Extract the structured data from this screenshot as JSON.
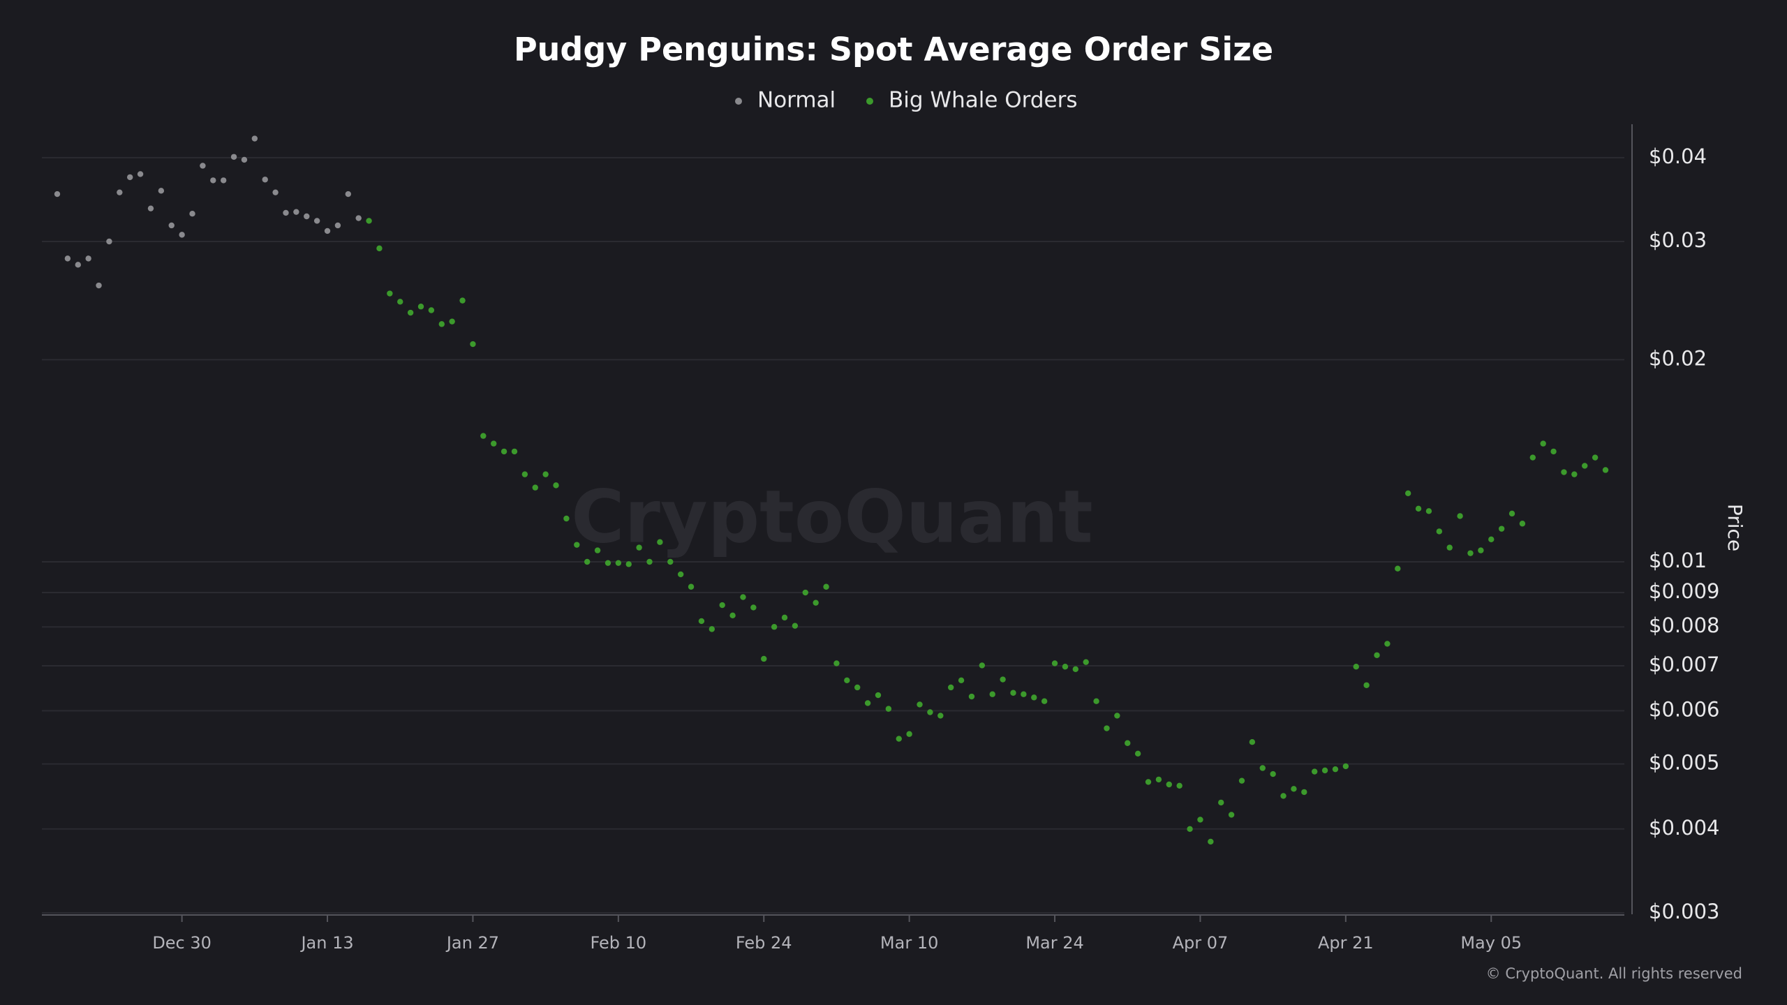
{
  "chart_data": {
    "type": "scatter",
    "title": "Pudgy Penguins: Spot Average Order Size",
    "y_label": "Price",
    "watermark": "CryptoQuant",
    "copyright": "© CryptoQuant. All rights reserved",
    "log_scale": true,
    "grid": true,
    "legend_position": "top",
    "x": [
      "Dec 18",
      "Dec 19",
      "Dec 20",
      "Dec 21",
      "Dec 22",
      "Dec 23",
      "Dec 24",
      "Dec 25",
      "Dec 26",
      "Dec 27",
      "Dec 28",
      "Dec 29",
      "Dec 30",
      "Dec 31",
      "Jan 01",
      "Jan 02",
      "Jan 03",
      "Jan 04",
      "Jan 05",
      "Jan 06",
      "Jan 07",
      "Jan 08",
      "Jan 09",
      "Jan 10",
      "Jan 11",
      "Jan 12",
      "Jan 13",
      "Jan 14",
      "Jan 15",
      "Jan 16",
      "Jan 17",
      "Jan 18",
      "Jan 19",
      "Jan 20",
      "Jan 21",
      "Jan 22",
      "Jan 23",
      "Jan 24",
      "Jan 25",
      "Jan 26",
      "Jan 27",
      "Jan 28",
      "Jan 29",
      "Jan 30",
      "Jan 31",
      "Feb 01",
      "Feb 02",
      "Feb 03",
      "Feb 04",
      "Feb 05",
      "Feb 06",
      "Feb 07",
      "Feb 08",
      "Feb 09",
      "Feb 10",
      "Feb 11",
      "Feb 12",
      "Feb 13",
      "Feb 14",
      "Feb 15",
      "Feb 16",
      "Feb 17",
      "Feb 18",
      "Feb 19",
      "Feb 20",
      "Feb 21",
      "Feb 22",
      "Feb 23",
      "Feb 24",
      "Feb 25",
      "Feb 26",
      "Feb 27",
      "Feb 28",
      "Mar 01",
      "Mar 02",
      "Mar 03",
      "Mar 04",
      "Mar 05",
      "Mar 06",
      "Mar 07",
      "Mar 08",
      "Mar 09",
      "Mar 10",
      "Mar 11",
      "Mar 12",
      "Mar 13",
      "Mar 14",
      "Mar 15",
      "Mar 16",
      "Mar 17",
      "Mar 18",
      "Mar 19",
      "Mar 20",
      "Mar 21",
      "Mar 22",
      "Mar 23",
      "Mar 24",
      "Mar 25",
      "Mar 26",
      "Mar 27",
      "Mar 28",
      "Mar 29",
      "Mar 30",
      "Mar 31",
      "Apr 01",
      "Apr 02",
      "Apr 03",
      "Apr 04",
      "Apr 05",
      "Apr 06",
      "Apr 07",
      "Apr 08",
      "Apr 09",
      "Apr 10",
      "Apr 11",
      "Apr 12",
      "Apr 13",
      "Apr 14",
      "Apr 15",
      "Apr 16",
      "Apr 17",
      "Apr 18",
      "Apr 19",
      "Apr 20",
      "Apr 21",
      "Apr 22",
      "Apr 23",
      "Apr 24",
      "Apr 25",
      "Apr 26",
      "Apr 27",
      "Apr 28",
      "Apr 29",
      "Apr 30",
      "May 01",
      "May 02",
      "May 03",
      "May 04",
      "May 05",
      "May 06",
      "May 07",
      "May 08",
      "May 09",
      "May 10",
      "May 11",
      "May 12",
      "May 13",
      "May 14",
      "May 15",
      "May 16"
    ],
    "xticks": [
      "Dec 30",
      "Jan 13",
      "Jan 27",
      "Feb 10",
      "Feb 24",
      "Mar 10",
      "Mar 24",
      "Apr 07",
      "Apr 21",
      "May 05"
    ],
    "ylim": [
      0.003,
      0.044
    ],
    "yticks": [
      {
        "value": 0.003,
        "label": "$0.003"
      },
      {
        "value": 0.004,
        "label": "$0.004"
      },
      {
        "value": 0.005,
        "label": "$0.005"
      },
      {
        "value": 0.006,
        "label": "$0.006"
      },
      {
        "value": 0.007,
        "label": "$0.007"
      },
      {
        "value": 0.008,
        "label": "$0.008"
      },
      {
        "value": 0.009,
        "label": "$0.009"
      },
      {
        "value": 0.01,
        "label": "$0.01"
      },
      {
        "value": 0.02,
        "label": "$0.02"
      },
      {
        "value": 0.03,
        "label": "$0.03"
      },
      {
        "value": 0.04,
        "label": "$0.04"
      }
    ],
    "series": [
      {
        "name": "Normal",
        "color": "#8a8a8e",
        "values": [
          0.0353,
          0.0283,
          0.0277,
          0.0283,
          0.0258,
          0.03,
          0.0355,
          0.0374,
          0.0378,
          0.0336,
          0.0357,
          0.0317,
          0.0307,
          0.033,
          0.0389,
          0.037,
          0.037,
          0.0401,
          0.0397,
          0.0427,
          0.0371,
          0.0355,
          0.0331,
          0.0332,
          0.0327,
          0.0322,
          0.0311,
          0.0317,
          0.0353,
          0.0325,
          null,
          null,
          null,
          null,
          null,
          null,
          null,
          null,
          null,
          null,
          null,
          null,
          null,
          null,
          null,
          null,
          null,
          null,
          null,
          null,
          null,
          null,
          null,
          null,
          null,
          null,
          null,
          null,
          null,
          null,
          null,
          null,
          null,
          null,
          null,
          null,
          null,
          null,
          null,
          null,
          null,
          null,
          null,
          null,
          null,
          null,
          null,
          null,
          null,
          null,
          null,
          null,
          null,
          null,
          null,
          null,
          null,
          null,
          null,
          null,
          null,
          null,
          null,
          null,
          null,
          null,
          null,
          null,
          null,
          null,
          null,
          null,
          null,
          null,
          null,
          null,
          null,
          null,
          null,
          null,
          null,
          null,
          null,
          null,
          null,
          null,
          null,
          null,
          null,
          null,
          null,
          null,
          null,
          null,
          null,
          null,
          null,
          null,
          null,
          null,
          null,
          null,
          null,
          null,
          null,
          null,
          null,
          null,
          null,
          null,
          null,
          null,
          null,
          null,
          null,
          null,
          null,
          null,
          null,
          null
        ]
      },
      {
        "name": "Big Whale Orders",
        "color": "#3c9a2c",
        "values": [
          null,
          null,
          null,
          null,
          null,
          null,
          null,
          null,
          null,
          null,
          null,
          null,
          null,
          null,
          null,
          null,
          null,
          null,
          null,
          null,
          null,
          null,
          null,
          null,
          null,
          null,
          null,
          null,
          null,
          null,
          0.0322,
          0.0293,
          0.0251,
          0.0244,
          0.0235,
          0.024,
          0.0237,
          0.0226,
          0.0228,
          0.0245,
          0.0211,
          0.0154,
          0.015,
          0.0146,
          0.0146,
          0.0135,
          0.0129,
          0.0135,
          0.013,
          0.0116,
          0.0106,
          0.01,
          0.0104,
          0.00996,
          0.00996,
          0.00992,
          0.0105,
          0.01,
          0.0107,
          0.01,
          0.00958,
          0.00918,
          0.00816,
          0.00794,
          0.00862,
          0.00832,
          0.00886,
          0.00855,
          0.00717,
          0.008,
          0.00826,
          0.00803,
          0.009,
          0.00869,
          0.00918,
          0.00706,
          0.00666,
          0.0065,
          0.00616,
          0.00633,
          0.00604,
          0.00545,
          0.00554,
          0.00613,
          0.00597,
          0.0059,
          0.0065,
          0.00666,
          0.0063,
          0.00701,
          0.00635,
          0.00668,
          0.00638,
          0.00635,
          0.00628,
          0.0062,
          0.00706,
          0.00698,
          0.00692,
          0.00709,
          0.0062,
          0.00565,
          0.0059,
          0.00537,
          0.00518,
          0.0047,
          0.00474,
          0.00466,
          0.00464,
          0.004,
          0.00413,
          0.00383,
          0.00438,
          0.0042,
          0.00472,
          0.00539,
          0.00493,
          0.00483,
          0.00448,
          0.00459,
          0.00454,
          0.00487,
          0.00489,
          0.00491,
          0.00496,
          0.00698,
          0.00655,
          0.00726,
          0.00755,
          0.00977,
          0.01265,
          0.012,
          0.0119,
          0.0111,
          0.0105,
          0.0117,
          0.0103,
          0.0104,
          0.0108,
          0.0112,
          0.0118,
          0.0114,
          0.0143,
          0.015,
          0.0146,
          0.0136,
          0.0135,
          0.0139,
          0.0143,
          0.0137
        ]
      }
    ]
  }
}
